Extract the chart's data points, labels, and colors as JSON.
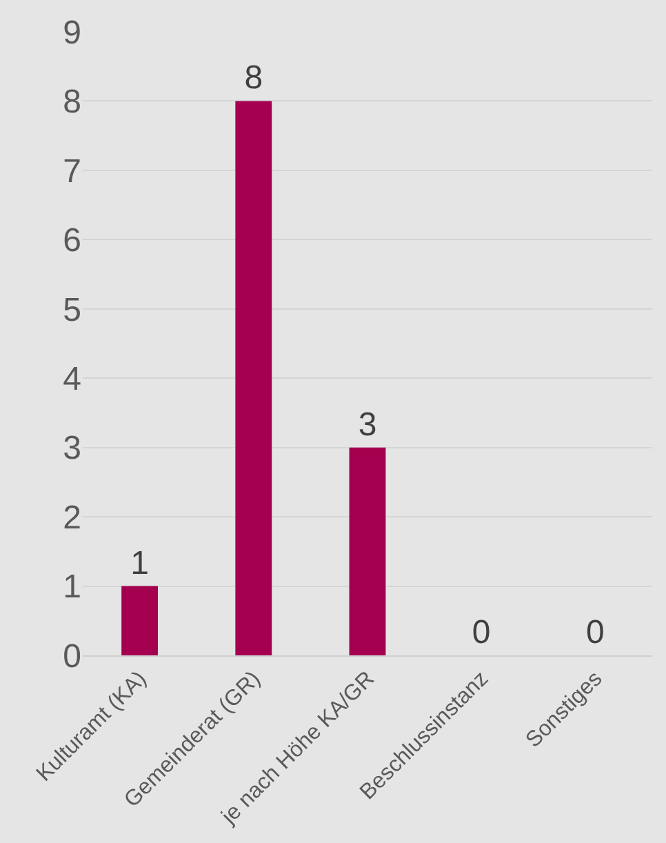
{
  "chart_data": {
    "type": "bar",
    "categories": [
      "Kulturamt (KA)",
      "Gemeinderat (GR)",
      "je nach Höhe KA/GR",
      "Beschlussinstanz",
      "Sonstiges"
    ],
    "values": [
      1,
      8,
      3,
      0,
      0
    ],
    "color": "#a50050",
    "ylim": [
      0,
      9
    ],
    "yticks": [
      0,
      1,
      2,
      3,
      4,
      5,
      6,
      7,
      8,
      9
    ],
    "grid": "y",
    "data_labels": true
  }
}
